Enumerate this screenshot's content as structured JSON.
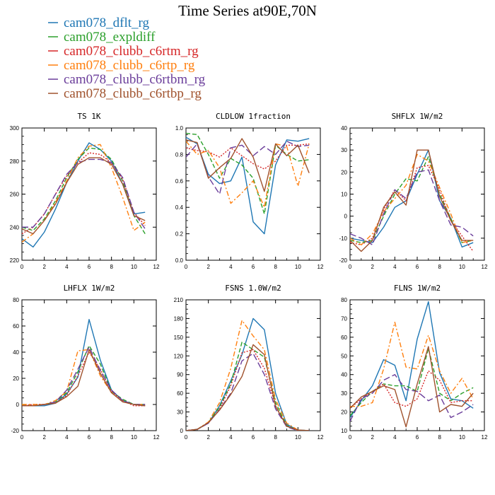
{
  "title": "Time Series at90E,70N",
  "legend": [
    {
      "label": "cam078_dflt_rg",
      "color": "#1f77b4",
      "dash": "solid"
    },
    {
      "label": "cam078_expldiff",
      "color": "#2ca02c",
      "dash": "dashed"
    },
    {
      "label": "cam078_clubb_c6rtm_rg",
      "color": "#d62728",
      "dash": "dotted"
    },
    {
      "label": "cam078_clubb_c6rtp_rg",
      "color": "#ff7f0e",
      "dash": "dashdot"
    },
    {
      "label": "cam078_clubb_c6rtbm_rg",
      "color": "#6a3d9a",
      "dash": "longdash"
    },
    {
      "label": "cam078_clubb_c6rtbp_rg",
      "color": "#a0522d",
      "dash": "solid"
    }
  ],
  "chart_data": [
    {
      "type": "line",
      "title": "TS   1K",
      "x": [
        0,
        1,
        2,
        3,
        4,
        5,
        6,
        7,
        8,
        9,
        10,
        11
      ],
      "xlim": [
        0,
        12
      ],
      "xticks": [
        0,
        2,
        4,
        6,
        8,
        10,
        12
      ],
      "ylim": [
        220,
        300
      ],
      "yticks": [
        220,
        240,
        260,
        280,
        300
      ],
      "series": [
        {
          "name": "cam078_dflt_rg",
          "values": [
            233,
            228,
            237,
            251,
            267,
            280,
            291,
            287,
            280,
            266,
            248,
            249
          ]
        },
        {
          "name": "cam078_expldiff",
          "values": [
            240,
            238,
            245,
            256,
            270,
            281,
            288,
            287,
            281,
            268,
            247,
            236
          ]
        },
        {
          "name": "cam078_clubb_c6rtm_rg",
          "values": [
            236,
            240,
            248,
            260,
            271,
            279,
            285,
            284,
            279,
            269,
            249,
            241
          ]
        },
        {
          "name": "cam078_clubb_c6rtp_rg",
          "values": [
            231,
            236,
            244,
            255,
            268,
            282,
            289,
            290,
            276,
            258,
            238,
            243
          ]
        },
        {
          "name": "cam078_clubb_c6rtbm_rg",
          "values": [
            240,
            240,
            248,
            260,
            272,
            279,
            281,
            281,
            279,
            270,
            249,
            239
          ]
        },
        {
          "name": "cam078_clubb_c6rtbp_rg",
          "values": [
            239,
            236,
            244,
            254,
            267,
            278,
            282,
            282,
            278,
            266,
            247,
            244
          ]
        }
      ]
    },
    {
      "type": "line",
      "title": "CLDLOW   1fraction",
      "x": [
        0,
        1,
        2,
        3,
        4,
        5,
        6,
        7,
        8,
        9,
        10,
        11
      ],
      "xlim": [
        0,
        12
      ],
      "xticks": [
        0,
        2,
        4,
        6,
        8,
        10,
        12
      ],
      "ylim": [
        0,
        1.0
      ],
      "yticks": [
        0.0,
        0.2,
        0.4,
        0.6,
        0.8,
        1.0
      ],
      "series": [
        {
          "name": "cam078_dflt_rg",
          "values": [
            0.93,
            0.88,
            0.65,
            0.58,
            0.6,
            0.78,
            0.29,
            0.2,
            0.72,
            0.91,
            0.9,
            0.92
          ]
        },
        {
          "name": "cam078_expldiff",
          "values": [
            0.96,
            0.95,
            0.8,
            0.62,
            0.77,
            0.72,
            0.62,
            0.35,
            0.87,
            0.8,
            0.75,
            0.76
          ]
        },
        {
          "name": "cam078_clubb_c6rtm_rg",
          "values": [
            0.85,
            0.83,
            0.82,
            0.78,
            0.85,
            0.79,
            0.73,
            0.69,
            0.75,
            0.87,
            0.87,
            0.88
          ]
        },
        {
          "name": "cam078_clubb_c6rtp_rg",
          "values": [
            0.9,
            0.8,
            0.83,
            0.7,
            0.43,
            0.51,
            0.6,
            0.4,
            0.88,
            0.86,
            0.56,
            0.88
          ]
        },
        {
          "name": "cam078_clubb_c6rtbm_rg",
          "values": [
            0.78,
            0.88,
            0.63,
            0.5,
            0.85,
            0.87,
            0.79,
            0.86,
            0.8,
            0.9,
            0.86,
            0.87
          ]
        },
        {
          "name": "cam078_clubb_c6rtbp_rg",
          "values": [
            0.91,
            0.89,
            0.62,
            0.7,
            0.77,
            0.92,
            0.78,
            0.52,
            0.88,
            0.79,
            0.87,
            0.66
          ]
        }
      ]
    },
    {
      "type": "line",
      "title": "SHFLX   1W/m2",
      "x": [
        0,
        1,
        2,
        3,
        4,
        5,
        6,
        7,
        8,
        9,
        10,
        11
      ],
      "xlim": [
        0,
        12
      ],
      "xticks": [
        0,
        2,
        4,
        6,
        8,
        10,
        12
      ],
      "ylim": [
        -20,
        40
      ],
      "yticks": [
        -20,
        -10,
        0,
        10,
        20,
        30,
        40
      ],
      "series": [
        {
          "name": "cam078_dflt_rg",
          "values": [
            -10,
            -11,
            -12,
            -5,
            4,
            7,
            19,
            30,
            7,
            -1,
            -14,
            -12
          ]
        },
        {
          "name": "cam078_expldiff",
          "values": [
            -11,
            -12,
            -11,
            0,
            10,
            17,
            16,
            27,
            10,
            -1,
            -12,
            -11
          ]
        },
        {
          "name": "cam078_clubb_c6rtm_rg",
          "values": [
            -12,
            -13,
            -10,
            3,
            12,
            7,
            22,
            23,
            12,
            -2,
            -9,
            -16
          ]
        },
        {
          "name": "cam078_clubb_c6rtp_rg",
          "values": [
            -10,
            -13,
            -8,
            2,
            8,
            14,
            28,
            25,
            13,
            1,
            -12,
            -11
          ]
        },
        {
          "name": "cam078_clubb_c6rtbm_rg",
          "values": [
            -8,
            -10,
            -13,
            1,
            12,
            8,
            20,
            21,
            7,
            -4,
            -5,
            -9
          ]
        },
        {
          "name": "cam078_clubb_c6rtbp_rg",
          "values": [
            -11,
            -16,
            -11,
            4,
            11,
            5,
            30,
            30,
            9,
            -2,
            -11,
            -11
          ]
        }
      ]
    },
    {
      "type": "line",
      "title": "LHFLX   1W/m2",
      "x": [
        0,
        1,
        2,
        3,
        4,
        5,
        6,
        7,
        8,
        9,
        10,
        11
      ],
      "xlim": [
        0,
        12
      ],
      "xticks": [
        0,
        2,
        4,
        6,
        8,
        10,
        12
      ],
      "ylim": [
        -20,
        80
      ],
      "yticks": [
        -20,
        0,
        20,
        40,
        60,
        80
      ],
      "series": [
        {
          "name": "cam078_dflt_rg",
          "values": [
            -1,
            -1,
            -1,
            1,
            8,
            21,
            65,
            34,
            11,
            3,
            0,
            -1
          ]
        },
        {
          "name": "cam078_expldiff",
          "values": [
            0,
            -1,
            0,
            2,
            9,
            25,
            45,
            31,
            10,
            4,
            0,
            0
          ]
        },
        {
          "name": "cam078_clubb_c6rtm_rg",
          "values": [
            -1,
            0,
            0,
            1,
            7,
            22,
            40,
            27,
            10,
            3,
            -1,
            -1
          ]
        },
        {
          "name": "cam078_clubb_c6rtp_rg",
          "values": [
            0,
            0,
            0,
            3,
            10,
            41,
            42,
            22,
            9,
            2,
            0,
            0
          ]
        },
        {
          "name": "cam078_clubb_c6rtbm_rg",
          "values": [
            -1,
            -1,
            0,
            2,
            11,
            27,
            44,
            26,
            11,
            3,
            0,
            0
          ]
        },
        {
          "name": "cam078_clubb_c6rtbp_rg",
          "values": [
            -1,
            -1,
            0,
            1,
            6,
            14,
            42,
            24,
            9,
            2,
            0,
            -1
          ]
        }
      ]
    },
    {
      "type": "line",
      "title": "FSNS   1.0W/m2",
      "x": [
        0,
        1,
        2,
        3,
        4,
        5,
        6,
        7,
        8,
        9,
        10,
        11
      ],
      "xlim": [
        0,
        12
      ],
      "xticks": [
        0,
        2,
        4,
        6,
        8,
        10,
        12
      ],
      "ylim": [
        0,
        210
      ],
      "yticks": [
        0,
        30,
        60,
        90,
        120,
        150,
        180,
        210
      ],
      "series": [
        {
          "name": "cam078_dflt_rg",
          "values": [
            0,
            2,
            12,
            40,
            80,
            122,
            180,
            162,
            60,
            10,
            1,
            0
          ]
        },
        {
          "name": "cam078_expldiff",
          "values": [
            0,
            2,
            13,
            38,
            75,
            142,
            130,
            118,
            45,
            8,
            1,
            0
          ]
        },
        {
          "name": "cam078_clubb_c6rtm_rg",
          "values": [
            0,
            2,
            12,
            35,
            72,
            125,
            130,
            100,
            40,
            7,
            0,
            0
          ]
        },
        {
          "name": "cam078_clubb_c6rtp_rg",
          "values": [
            0,
            2,
            14,
            45,
            100,
            177,
            152,
            130,
            50,
            12,
            1,
            0
          ]
        },
        {
          "name": "cam078_clubb_c6rtbm_rg",
          "values": [
            0,
            2,
            12,
            34,
            60,
            112,
            124,
            90,
            35,
            6,
            0,
            0
          ]
        },
        {
          "name": "cam078_clubb_c6rtbp_rg",
          "values": [
            0,
            2,
            13,
            33,
            58,
            87,
            138,
            122,
            39,
            7,
            1,
            0
          ]
        }
      ]
    },
    {
      "type": "line",
      "title": "FLNS   1W/m2",
      "x": [
        0,
        1,
        2,
        3,
        4,
        5,
        6,
        7,
        8,
        9,
        10,
        11
      ],
      "xlim": [
        0,
        12
      ],
      "xticks": [
        0,
        2,
        4,
        6,
        8,
        10,
        12
      ],
      "ylim": [
        10,
        80
      ],
      "yticks": [
        10,
        20,
        30,
        40,
        50,
        60,
        70,
        80
      ],
      "series": [
        {
          "name": "cam078_dflt_rg",
          "values": [
            17,
            26,
            34,
            48,
            45,
            26,
            59,
            79,
            41,
            27,
            26,
            22
          ]
        },
        {
          "name": "cam078_expldiff",
          "values": [
            18,
            25,
            31,
            35,
            34,
            34,
            31,
            54,
            30,
            26,
            30,
            33
          ]
        },
        {
          "name": "cam078_clubb_c6rtm_rg",
          "values": [
            22,
            27,
            31,
            35,
            25,
            23,
            27,
            42,
            37,
            25,
            26,
            26
          ]
        },
        {
          "name": "cam078_clubb_c6rtp_rg",
          "values": [
            23,
            23,
            25,
            43,
            68,
            44,
            43,
            61,
            42,
            30,
            38,
            27
          ]
        },
        {
          "name": "cam078_clubb_c6rtbm_rg",
          "values": [
            15,
            27,
            30,
            37,
            40,
            32,
            31,
            26,
            29,
            17,
            20,
            24
          ]
        },
        {
          "name": "cam078_clubb_c6rtbp_rg",
          "values": [
            22,
            28,
            31,
            34,
            32,
            12,
            35,
            55,
            20,
            24,
            23,
            30
          ]
        }
      ]
    }
  ]
}
